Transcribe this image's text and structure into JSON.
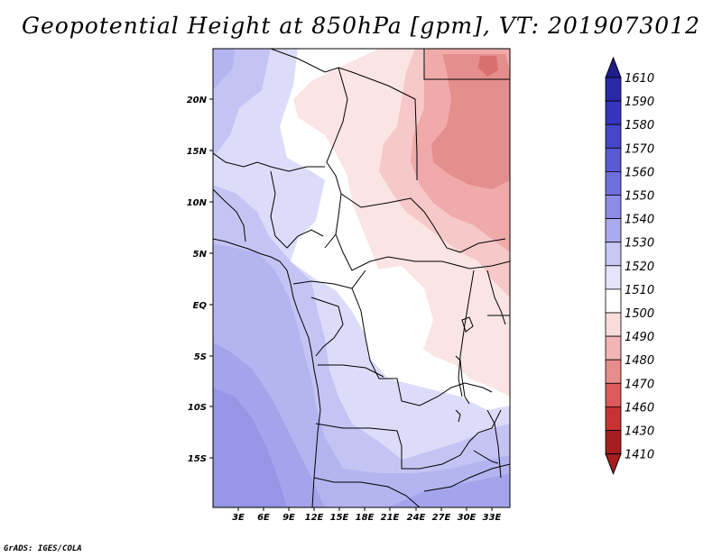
{
  "title": "Geopotential Height at 850hPa [gpm], VT: 2019073012",
  "credit": "GrADS: IGES/COLA",
  "map": {
    "lat_labels": [
      "20N",
      "15N",
      "10N",
      "5N",
      "EQ",
      "5S",
      "10S",
      "15S"
    ],
    "lon_labels": [
      "3E",
      "6E",
      "9E",
      "12E",
      "15E",
      "18E",
      "21E",
      "24E",
      "27E",
      "30E",
      "33E"
    ]
  },
  "colorbar": {
    "levels": [
      "1610",
      "1590",
      "1580",
      "1570",
      "1560",
      "1550",
      "1540",
      "1530",
      "1520",
      "1510",
      "1500",
      "1490",
      "1480",
      "1470",
      "1460",
      "1430",
      "1410"
    ],
    "colors": [
      "#1e1e8c",
      "#2828a8",
      "#3434bc",
      "#4646c8",
      "#5a5ad4",
      "#6e6ede",
      "#8c8ce8",
      "#aaaaf0",
      "#c8c8f6",
      "#e4e4fa",
      "#ffffff",
      "#f8dcdc",
      "#f2b4b4",
      "#e88c8c",
      "#dc5a5a",
      "#c83232",
      "#a81e1e"
    ]
  }
}
